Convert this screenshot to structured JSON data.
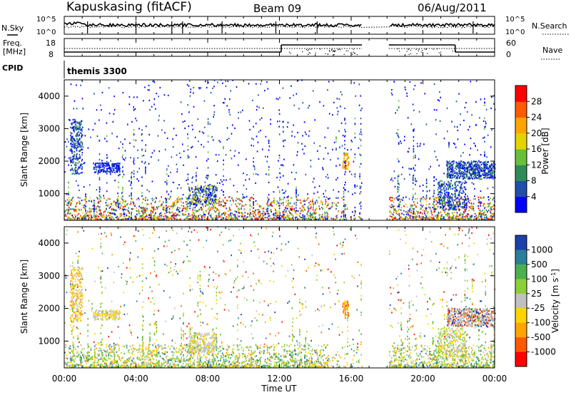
{
  "header": {
    "station": "Kapuskasing (fitACF)",
    "beam": "Beam 09",
    "date": "06/Aug/2011"
  },
  "aux_panels": {
    "nsky_label": "N.Sky",
    "nsearch_label": "N.Search",
    "noise_ticks_left": [
      "10^5",
      "10^0"
    ],
    "noise_ticks_right": [
      "10^5",
      "10^0"
    ],
    "freq_label_1": "Freq.",
    "freq_label_2": "[MHz]",
    "freq_ticks": [
      "18",
      "8"
    ],
    "nave_label": "Nave",
    "nave_ticks": [
      "60",
      "0"
    ],
    "cpid_label": "CPID",
    "cpid_value": "themis 3300"
  },
  "colors": {
    "power_scale": [
      "#0000ff",
      "#1f4fa8",
      "#2e8b57",
      "#6abf3a",
      "#e3d400",
      "#ffa500",
      "#ff5a00",
      "#ff0000"
    ],
    "velocity_scale": [
      "#1c3fa8",
      "#2a7f9a",
      "#4caf50",
      "#8bd035",
      "#c0c0c0",
      "#ffd400",
      "#ffa500",
      "#ff5a00",
      "#ff0000"
    ]
  },
  "chart_data": [
    {
      "type": "heatmap",
      "name": "power",
      "ylabel": "Slant Range [km]",
      "yticks": [
        "1000",
        "2000",
        "3000",
        "4000"
      ],
      "ylim": [
        180,
        4500
      ],
      "xlim_hours": [
        0,
        24
      ],
      "data_gap_hours": [
        16.6,
        18.1
      ],
      "colorbar_label": "Power [dB]",
      "colorbar_ticks": [
        "4",
        "8",
        "12",
        "16",
        "20",
        "24",
        "28"
      ]
    },
    {
      "type": "heatmap",
      "name": "velocity",
      "ylabel": "Slant Range [km]",
      "yticks": [
        "1000",
        "2000",
        "3000",
        "4000"
      ],
      "ylim": [
        180,
        4500
      ],
      "xlim_hours": [
        0,
        24
      ],
      "data_gap_hours": [
        16.6,
        18.1
      ],
      "colorbar_label": "Velocity [m s^-1]",
      "colorbar_ticks": [
        "1000",
        "500",
        "100",
        "25",
        "-25",
        "-100",
        "-500",
        "-1000"
      ]
    }
  ],
  "xaxis": {
    "ticks": [
      "00:00",
      "04:00",
      "08:00",
      "12:00",
      "16:00",
      "20:00",
      "00:00"
    ],
    "label": "Time UT"
  }
}
